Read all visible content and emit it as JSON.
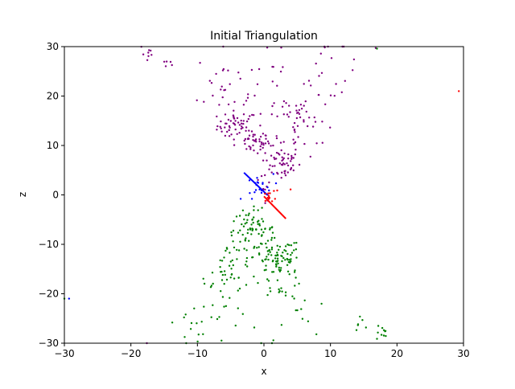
{
  "chart_data": {
    "type": "scatter",
    "title": "Initial Triangulation",
    "xlabel": "x",
    "ylabel": "z",
    "xlim": [
      -30,
      30
    ],
    "ylim": [
      -30,
      30
    ],
    "xticks": [
      -30,
      -20,
      -10,
      0,
      10,
      20,
      30
    ],
    "yticks": [
      -30,
      -20,
      -10,
      0,
      10,
      20,
      30
    ],
    "xtick_labels": [
      "−30",
      "−20",
      "−10",
      "0",
      "10",
      "20",
      "30"
    ],
    "ytick_labels": [
      "−30",
      "−20",
      "−10",
      "0",
      "10",
      "20",
      "30"
    ],
    "grid": false,
    "series": [
      {
        "color": "#800080",
        "marker": "point",
        "clusters": [
          {
            "center": [
              -4.0,
              14.0
            ],
            "spread": [
              1.5,
              1.5
            ],
            "count": 55
          },
          {
            "center": [
              -1.5,
              10.5
            ],
            "spread": [
              1.2,
              1.0
            ],
            "count": 35
          },
          {
            "center": [
              2.5,
              6.5
            ],
            "spread": [
              1.5,
              1.8
            ],
            "count": 55
          },
          {
            "center": [
              5.0,
              15.0
            ],
            "spread": [
              2.2,
              3.5
            ],
            "count": 50
          },
          {
            "center": [
              -6.0,
              22.0
            ],
            "spread": [
              2.0,
              4.0
            ],
            "count": 25
          },
          {
            "center": [
              2.0,
              22.0
            ],
            "spread": [
              3.5,
              4.5
            ],
            "count": 25
          },
          {
            "center": [
              10.0,
              24.0
            ],
            "spread": [
              2.0,
              4.0
            ],
            "count": 18
          },
          {
            "center": [
              -17.5,
              28.5
            ],
            "spread": [
              0.6,
              1.0
            ],
            "count": 8
          },
          {
            "center": [
              -14.5,
              26.5
            ],
            "spread": [
              0.5,
              1.0
            ],
            "count": 5
          },
          {
            "center": [
              0.5,
              1.5
            ],
            "spread": [
              0.8,
              1.2
            ],
            "count": 10
          }
        ],
        "points": [
          [
            -17.6,
            -30.0
          ],
          [
            0.5,
            29.8
          ],
          [
            16.8,
            29.7
          ],
          [
            12.0,
            30.0
          ]
        ]
      },
      {
        "color": "#008000",
        "marker": "point",
        "clusters": [
          {
            "center": [
              -2.0,
              -7.0
            ],
            "spread": [
              1.8,
              2.0
            ],
            "count": 70
          },
          {
            "center": [
              2.0,
              -12.5
            ],
            "spread": [
              1.8,
              1.8
            ],
            "count": 70
          },
          {
            "center": [
              -4.5,
              -15.0
            ],
            "spread": [
              2.0,
              3.0
            ],
            "count": 35
          },
          {
            "center": [
              2.5,
              -16.0
            ],
            "spread": [
              1.8,
              2.5
            ],
            "count": 35
          },
          {
            "center": [
              -6.5,
              -21.0
            ],
            "spread": [
              2.0,
              3.5
            ],
            "count": 25
          },
          {
            "center": [
              -11.0,
              -26.0
            ],
            "spread": [
              1.2,
              2.0
            ],
            "count": 10
          },
          {
            "center": [
              5.5,
              -24.0
            ],
            "spread": [
              1.0,
              2.5
            ],
            "count": 10
          },
          {
            "center": [
              17.5,
              -28.0
            ],
            "spread": [
              0.6,
              1.0
            ],
            "count": 10
          },
          {
            "center": [
              14.5,
              -26.0
            ],
            "spread": [
              0.5,
              0.8
            ],
            "count": 6
          },
          {
            "center": [
              0.0,
              -27.0
            ],
            "spread": [
              2.0,
              2.0
            ],
            "count": 6
          }
        ],
        "points": [
          [
            17.0,
            29.6
          ],
          [
            -30.0,
            -21.0
          ]
        ]
      },
      {
        "color": "#0000ff",
        "marker": "point",
        "clusters": [
          {
            "center": [
              -1.0,
              1.8
            ],
            "spread": [
              1.2,
              1.2
            ],
            "count": 18
          }
        ],
        "line": [
          [
            -3.0,
            4.5
          ],
          [
            0.5,
            0.0
          ]
        ],
        "points": [
          [
            -29.3,
            -21.0
          ],
          [
            -3.5,
            -0.8
          ],
          [
            -1.8,
            -0.8
          ]
        ]
      },
      {
        "color": "#ff0000",
        "marker": "point",
        "clusters": [
          {
            "center": [
              0.5,
              -1.0
            ],
            "spread": [
              0.8,
              0.8
            ],
            "count": 10
          }
        ],
        "line": [
          [
            0.0,
            -0.3
          ],
          [
            3.3,
            -4.8
          ]
        ],
        "points": [
          [
            29.3,
            21.0
          ],
          [
            2.0,
            0.9
          ],
          [
            4.0,
            1.1
          ],
          [
            1.5,
            0.8
          ]
        ]
      }
    ]
  }
}
